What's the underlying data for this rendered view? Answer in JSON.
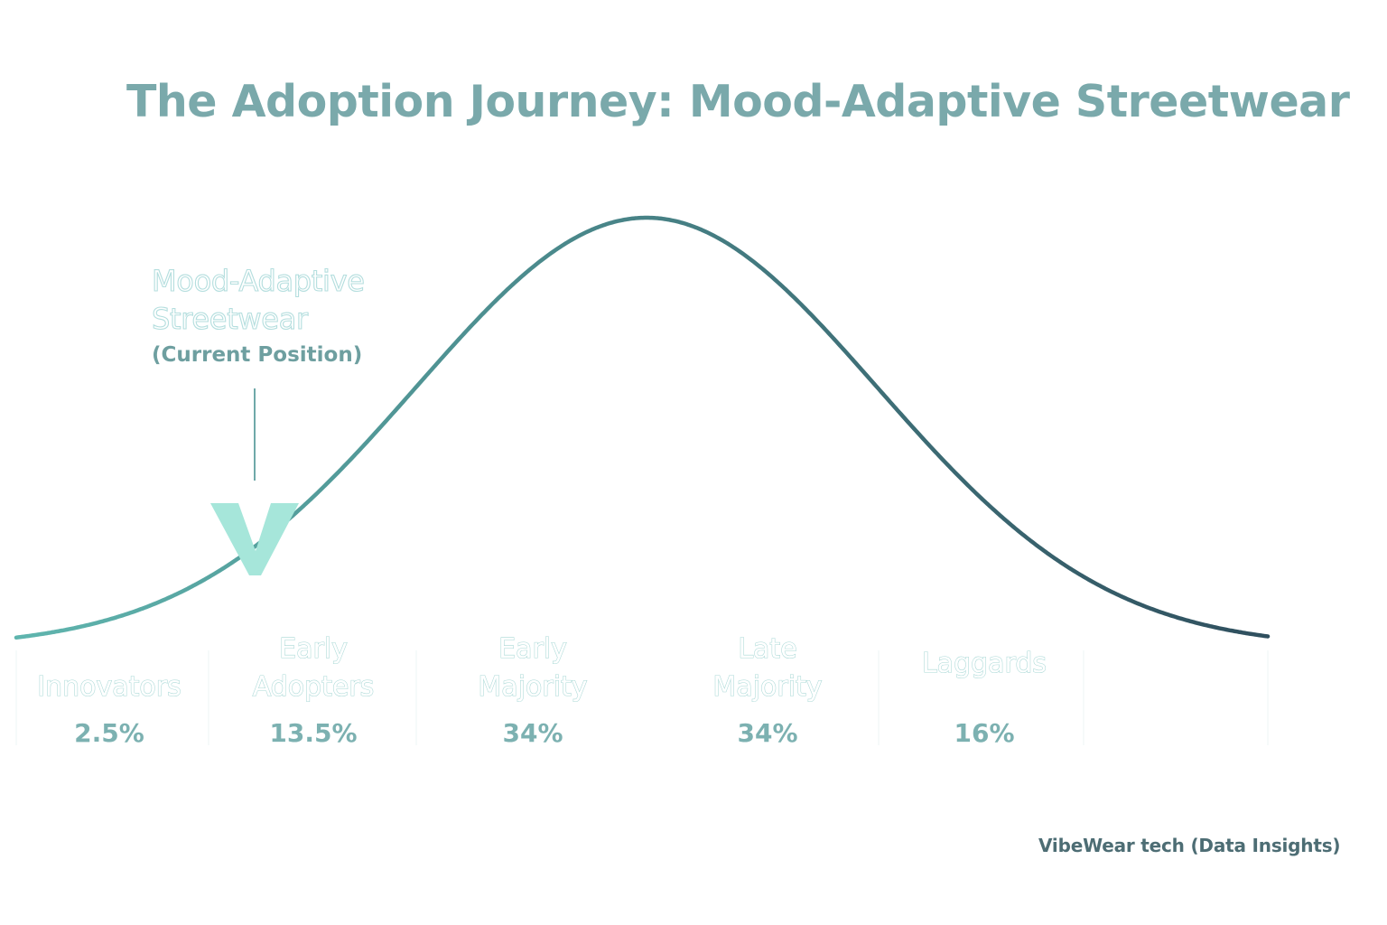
{
  "chart_data": {
    "type": "area",
    "title": "The Adoption Journey: Mood-Adaptive Streetwear",
    "distribution": "bell-curve",
    "segments": [
      {
        "label": [
          "Innovators"
        ],
        "percent_label": "2.5%",
        "share": 2.5
      },
      {
        "label": [
          "Early",
          "Adopters"
        ],
        "percent_label": "13.5%",
        "share": 13.5
      },
      {
        "label": [
          "Early",
          "Majority"
        ],
        "percent_label": "34%",
        "share": 34
      },
      {
        "label": [
          "Late",
          "Majority"
        ],
        "percent_label": "34%",
        "share": 34
      },
      {
        "label": [
          "Laggards"
        ],
        "percent_label": "16%",
        "share": 16
      }
    ],
    "annotation": {
      "name": [
        "Mood-Adaptive",
        "Streetwear"
      ],
      "subtitle": "(Current Position)",
      "segment": "Early Adopters"
    },
    "grid": false,
    "legend": "none"
  },
  "footer": {
    "source": "VibeWear tech (Data Insights)"
  },
  "colors": {
    "title": "#7aa9ab",
    "curve_start": "#5fb5ae",
    "curve_end": "#2f4f5e",
    "marker": "#a6e6da",
    "pointer": "#6fa9a9",
    "percent": "#7cb1b1",
    "footer": "#4d6d74"
  }
}
